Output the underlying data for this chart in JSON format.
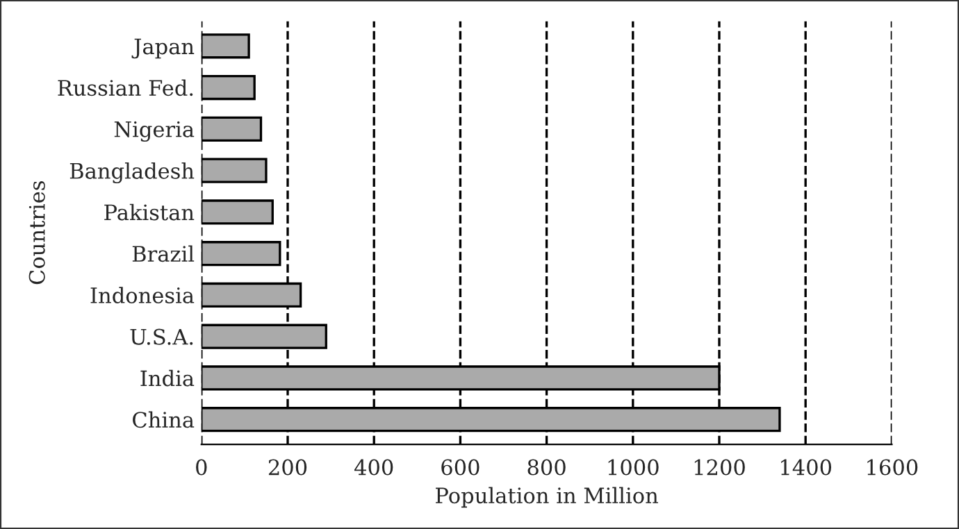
{
  "chart_data": {
    "type": "bar",
    "orientation": "horizontal",
    "xlabel": "Population in Million",
    "ylabel": "Countries",
    "categories": [
      "Japan",
      "Russian Fed.",
      "Nigeria",
      "Bangladesh",
      "Pakistan",
      "Brazil",
      "Indonesia",
      "U.S.A.",
      "India",
      "China"
    ],
    "values": [
      110,
      123,
      138,
      150,
      165,
      182,
      230,
      289,
      1200,
      1340
    ],
    "color": "#aaaaaa",
    "xlim": [
      0,
      1600
    ],
    "xticks": [
      0,
      200,
      400,
      600,
      800,
      1000,
      1200,
      1400,
      1600
    ],
    "grid": "x",
    "line_style": "dashed"
  }
}
